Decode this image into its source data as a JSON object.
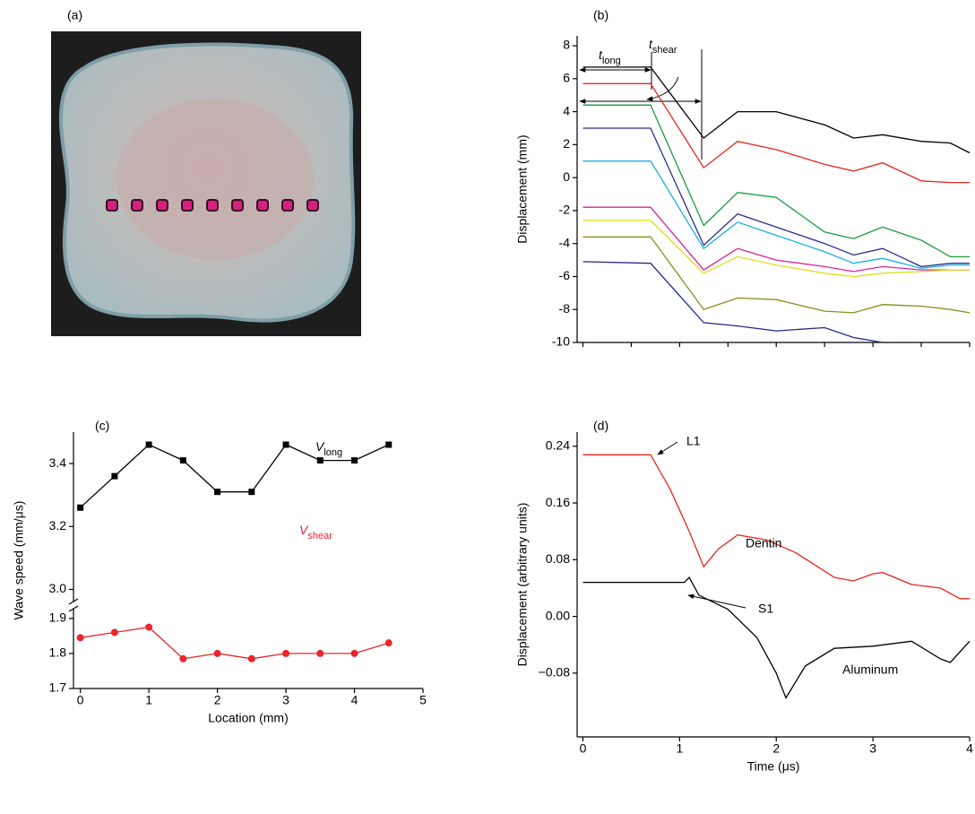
{
  "chart_data": [
    {
      "type": "image",
      "title": "(a)"
    },
    {
      "type": "line",
      "title": "(b)",
      "ylabel": "Displacement (mm)",
      "x": [
        0,
        0.7,
        1.25,
        1.6,
        2.0,
        2.5,
        2.8,
        3.1,
        3.5,
        3.8,
        4.0
      ],
      "series": [
        {
          "color": "#000000",
          "values": [
            6.7,
            6.7,
            2.4,
            4.0,
            4.0,
            3.2,
            2.4,
            2.6,
            2.2,
            2.1,
            1.5
          ]
        },
        {
          "color": "#e8261f",
          "values": [
            5.7,
            5.7,
            0.6,
            2.2,
            1.7,
            0.8,
            0.4,
            0.9,
            -0.2,
            -0.3,
            -0.3
          ]
        },
        {
          "color": "#1a9a3a",
          "values": [
            4.4,
            4.4,
            -2.9,
            -0.9,
            -1.2,
            -3.3,
            -3.7,
            -3.0,
            -3.8,
            -4.8,
            -4.8
          ]
        },
        {
          "color": "#2b2d8a",
          "values": [
            3.0,
            3.0,
            -4.1,
            -2.2,
            -3.0,
            -4.0,
            -4.7,
            -4.3,
            -5.4,
            -5.2,
            -5.2
          ]
        },
        {
          "color": "#1ab0e0",
          "values": [
            1.0,
            1.0,
            -4.3,
            -2.7,
            -3.5,
            -4.5,
            -5.2,
            -4.9,
            -5.5,
            -5.3,
            -5.3
          ]
        },
        {
          "color": "#d6249a",
          "values": [
            -1.8,
            -1.8,
            -5.6,
            -4.3,
            -5.0,
            -5.4,
            -5.7,
            -5.4,
            -5.6,
            -5.6,
            -5.6
          ]
        },
        {
          "color": "#e8d81a",
          "values": [
            -2.6,
            -2.6,
            -5.8,
            -4.8,
            -5.3,
            -5.8,
            -6.0,
            -5.8,
            -5.7,
            -5.6,
            -5.6
          ]
        },
        {
          "color": "#8c8c1c",
          "values": [
            -3.6,
            -3.6,
            -8.0,
            -7.3,
            -7.4,
            -8.1,
            -8.2,
            -7.7,
            -7.8,
            -8.0,
            -8.2
          ]
        },
        {
          "color": "#232a86",
          "values": [
            -5.1,
            -5.2,
            -8.8,
            -9.0,
            -9.3,
            -9.1,
            -9.7,
            -10.0,
            null,
            null,
            null
          ]
        }
      ],
      "xlim": [
        -0.06,
        4
      ],
      "ylim": [
        -10,
        8.6
      ],
      "xticks": [
        0,
        0.5,
        1,
        1.5,
        2,
        2.5,
        3,
        3.5,
        4
      ],
      "xtick_labels": false,
      "yticks": [
        -10,
        -8,
        -6,
        -4,
        -2,
        0,
        2,
        4,
        6,
        8
      ],
      "annotations": [
        {
          "text": "t",
          "sub": "long"
        },
        {
          "text": "t",
          "sub": "shear"
        }
      ]
    },
    {
      "type": "line",
      "title": "(c)",
      "xlabel": "Location (mm)",
      "ylabel": "Wave speed (mm/μs)",
      "x": [
        0,
        0.5,
        1,
        1.5,
        2,
        2.5,
        3,
        3.5,
        4,
        4.5
      ],
      "series": [
        {
          "color": "#000000",
          "marker": "square",
          "label": {
            "text": "V",
            "sub": "long"
          },
          "values": [
            3.26,
            3.36,
            3.46,
            3.41,
            3.31,
            3.31,
            3.46,
            3.41,
            3.41,
            3.46
          ]
        },
        {
          "color": "#e8262b",
          "marker": "circle",
          "label": {
            "text": "V",
            "sub": "shear"
          },
          "values": [
            1.845,
            1.86,
            1.875,
            1.785,
            1.8,
            1.785,
            1.8,
            1.8,
            1.8,
            1.83
          ]
        }
      ],
      "xlim": [
        -0.1,
        5
      ],
      "ylim": [
        1.7,
        3.5
      ],
      "axis_break": [
        1.92,
        2.97
      ],
      "xticks": [
        0,
        1,
        2,
        3,
        4,
        5
      ],
      "yticks": [
        1.7,
        1.8,
        1.9,
        {
          "value": 3,
          "label": "3.0"
        },
        3.2,
        3.4
      ]
    },
    {
      "type": "line",
      "title": "(d)",
      "xlabel": "Time (μs)",
      "ylabel": "Displacement (arbitrary units)",
      "series": [
        {
          "name": "Dentin",
          "color": "#e8261f",
          "x": [
            0,
            0.7,
            0.9,
            1.1,
            1.25,
            1.4,
            1.6,
            1.9,
            2.2,
            2.6,
            2.8,
            3.0,
            3.1,
            3.4,
            3.7,
            3.9,
            4.0
          ],
          "values": [
            0.228,
            0.228,
            0.18,
            0.12,
            0.07,
            0.095,
            0.115,
            0.108,
            0.09,
            0.055,
            0.05,
            0.06,
            0.062,
            0.045,
            0.04,
            0.025,
            0.025
          ]
        },
        {
          "name": "Aluminum",
          "color": "#000000",
          "x": [
            0,
            1.05,
            1.1,
            1.2,
            1.5,
            1.8,
            2.0,
            2.1,
            2.3,
            2.6,
            3.0,
            3.4,
            3.7,
            3.8,
            4.0
          ],
          "values": [
            0.048,
            0.048,
            0.055,
            0.03,
            0.01,
            -0.03,
            -0.08,
            -0.115,
            -0.07,
            -0.045,
            -0.042,
            -0.035,
            -0.06,
            -0.065,
            -0.035
          ]
        }
      ],
      "xlim": [
        -0.06,
        4
      ],
      "ylim": [
        -0.17,
        0.26
      ],
      "xticks": [
        0,
        1,
        2,
        3,
        4
      ],
      "yticks": [
        {
          "value": -0.08,
          "label": "−0.08"
        },
        {
          "value": 0,
          "label": "0.00"
        },
        0.08,
        0.16,
        0.24
      ],
      "annotations": [
        {
          "text": "L1"
        },
        {
          "text": "S1"
        }
      ]
    }
  ]
}
